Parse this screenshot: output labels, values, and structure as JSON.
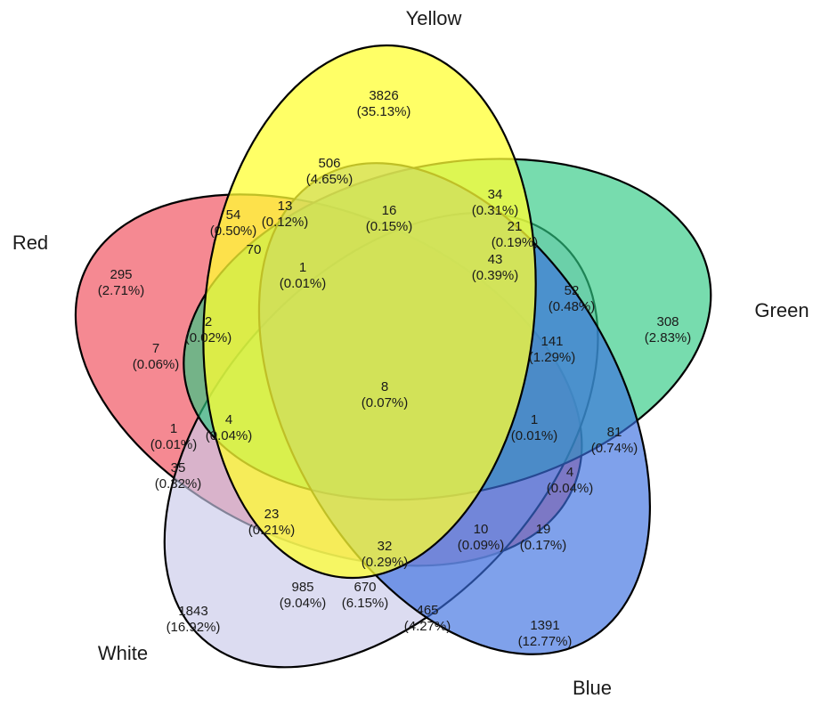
{
  "chart_data": {
    "type": "venn",
    "sets": [
      {
        "name": "Yellow",
        "color": "#ffff33"
      },
      {
        "name": "Green",
        "color": "#2ec982"
      },
      {
        "name": "Blue",
        "color": "#3b6fe0"
      },
      {
        "name": "White",
        "color": "#c9c9ea"
      },
      {
        "name": "Red",
        "color": "#ef4a57"
      }
    ],
    "regions": [
      {
        "count": "3826",
        "pct": "(35.13%)"
      },
      {
        "count": "506",
        "pct": "(4.65%)"
      },
      {
        "count": "34",
        "pct": "(0.31%)"
      },
      {
        "count": "16",
        "pct": "(0.15%)"
      },
      {
        "count": "21",
        "pct": "(0.19%)"
      },
      {
        "count": "54",
        "pct": "(0.50%)"
      },
      {
        "count": "13",
        "pct": "(0.12%)"
      },
      {
        "count": "70",
        "pct": ""
      },
      {
        "count": "1",
        "pct": "(0.01%)"
      },
      {
        "count": "43",
        "pct": "(0.39%)"
      },
      {
        "count": "295",
        "pct": "(2.71%)"
      },
      {
        "count": "52",
        "pct": "(0.48%)"
      },
      {
        "count": "308",
        "pct": "(2.83%)"
      },
      {
        "count": "2",
        "pct": "(0.02%)"
      },
      {
        "count": "7",
        "pct": "(0.06%)"
      },
      {
        "count": "141",
        "pct": "(1.29%)"
      },
      {
        "count": "8",
        "pct": "(0.07%)"
      },
      {
        "count": "4",
        "pct": "(0.04%)"
      },
      {
        "count": "1",
        "pct": "(0.01%)"
      },
      {
        "count": "1",
        "pct": "(0.01%)"
      },
      {
        "count": "81",
        "pct": "(0.74%)"
      },
      {
        "count": "35",
        "pct": "(0.32%)"
      },
      {
        "count": "4",
        "pct": "(0.04%)"
      },
      {
        "count": "23",
        "pct": "(0.21%)"
      },
      {
        "count": "10",
        "pct": "(0.09%)"
      },
      {
        "count": "19",
        "pct": "(0.17%)"
      },
      {
        "count": "32",
        "pct": "(0.29%)"
      },
      {
        "count": "985",
        "pct": "(9.04%)"
      },
      {
        "count": "670",
        "pct": "(6.15%)"
      },
      {
        "count": "465",
        "pct": "(4.27%)"
      },
      {
        "count": "1843",
        "pct": "(16.92%)"
      },
      {
        "count": "1391",
        "pct": "(12.77%)"
      }
    ]
  }
}
